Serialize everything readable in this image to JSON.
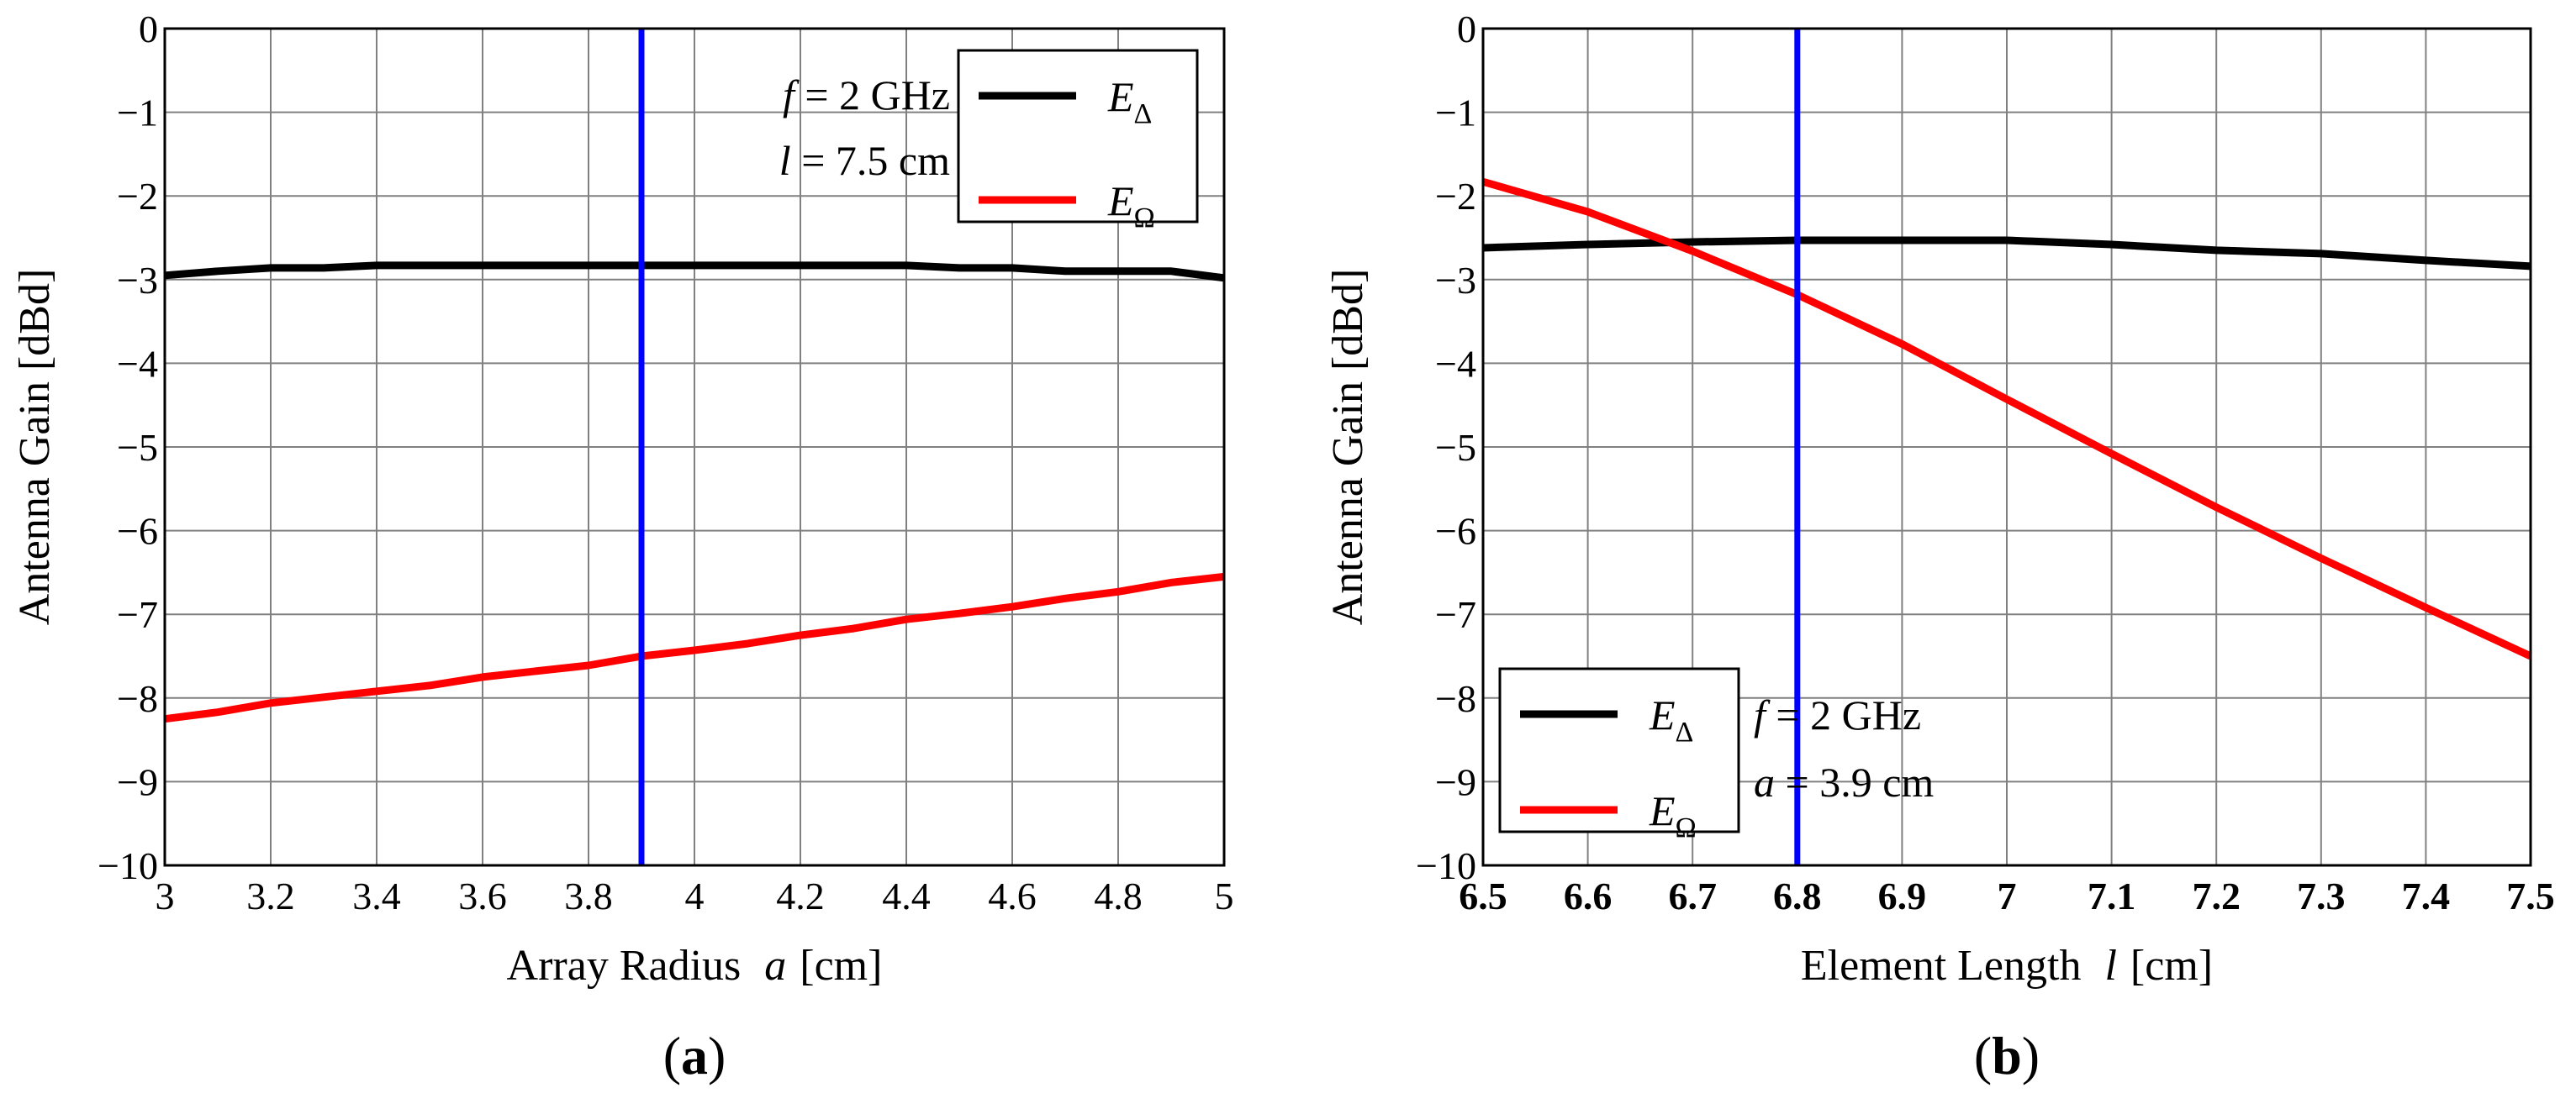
{
  "colors": {
    "E_delta": "#000000",
    "E_omega": "#ff0000",
    "marker": "#0000ff",
    "grid": "#808080"
  },
  "chart_data": [
    {
      "panel_label": "a",
      "type": "line",
      "xlabel_main": "Array Radius",
      "xlabel_var": "a",
      "xlabel_unit": "[cm]",
      "ylabel": "Antenna Gain [dBd]",
      "xlim": [
        3,
        5
      ],
      "ylim": [
        -10,
        0
      ],
      "xticks": [
        3,
        3.2,
        3.4,
        3.6,
        3.8,
        4,
        4.2,
        4.4,
        4.6,
        4.8,
        5
      ],
      "xtick_labels": [
        "3",
        "3.2",
        "3.4",
        "3.6",
        "3.8",
        "4",
        "4.2",
        "4.4",
        "4.6",
        "4.8",
        "5"
      ],
      "yticks": [
        0,
        -1,
        -2,
        -3,
        -4,
        -5,
        -6,
        -7,
        -8,
        -9,
        -10
      ],
      "ytick_labels": [
        "0",
        "−1",
        "−2",
        "−3",
        "−4",
        "−5",
        "−6",
        "−7",
        "−8",
        "−9",
        "−10"
      ],
      "grid": true,
      "legend_position": "top-right",
      "marker_line_x": 3.9,
      "annotations": [
        {
          "var": "f",
          "text": " = 2 GHz"
        },
        {
          "var": "l",
          "text": " = 7.5 cm"
        }
      ],
      "series": [
        {
          "name": "E",
          "name_sub": "Δ",
          "color_key": "E_delta",
          "x": [
            3,
            3.1,
            3.2,
            3.3,
            3.4,
            3.5,
            3.6,
            3.7,
            3.8,
            3.9,
            4,
            4.1,
            4.2,
            4.3,
            4.4,
            4.5,
            4.6,
            4.7,
            4.8,
            4.9,
            5
          ],
          "y": [
            -2.95,
            -2.9,
            -2.86,
            -2.86,
            -2.83,
            -2.83,
            -2.83,
            -2.83,
            -2.83,
            -2.83,
            -2.83,
            -2.83,
            -2.83,
            -2.83,
            -2.83,
            -2.86,
            -2.86,
            -2.9,
            -2.9,
            -2.9,
            -2.98
          ]
        },
        {
          "name": "E",
          "name_sub": "Ω",
          "color_key": "E_omega",
          "x": [
            3,
            3.1,
            3.2,
            3.3,
            3.4,
            3.5,
            3.6,
            3.7,
            3.8,
            3.9,
            4,
            4.1,
            4.2,
            4.3,
            4.4,
            4.5,
            4.6,
            4.7,
            4.8,
            4.9,
            5
          ],
          "y": [
            -8.25,
            -8.17,
            -8.06,
            -7.99,
            -7.92,
            -7.85,
            -7.75,
            -7.68,
            -7.61,
            -7.5,
            -7.43,
            -7.35,
            -7.25,
            -7.17,
            -7.06,
            -6.99,
            -6.91,
            -6.81,
            -6.73,
            -6.62,
            -6.55
          ]
        }
      ]
    },
    {
      "panel_label": "b",
      "type": "line",
      "xlabel_main": "Element Length",
      "xlabel_var": "l",
      "xlabel_unit": "[cm]",
      "ylabel": "Antenna Gain [dBd]",
      "xlim": [
        6.5,
        7.5
      ],
      "ylim": [
        -10,
        0
      ],
      "xticks": [
        6.5,
        6.6,
        6.7,
        6.8,
        6.9,
        7,
        7.1,
        7.2,
        7.3,
        7.4,
        7.5
      ],
      "xtick_labels": [
        "6.5",
        "6.6",
        "6.7",
        "6.8",
        "6.9",
        "7",
        "7.1",
        "7.2",
        "7.3",
        "7.4",
        "7.5"
      ],
      "yticks": [
        0,
        -1,
        -2,
        -3,
        -4,
        -5,
        -6,
        -7,
        -8,
        -9,
        -10
      ],
      "ytick_labels": [
        "0",
        "−1",
        "−2",
        "−3",
        "−4",
        "−5",
        "−6",
        "−7",
        "−8",
        "−9",
        "−10"
      ],
      "grid": true,
      "legend_position": "bottom-left",
      "marker_line_x": 6.8,
      "annotations": [
        {
          "var": "f",
          "text": " = 2 GHz"
        },
        {
          "var": "a",
          "text": " = 3.9 cm"
        }
      ],
      "series": [
        {
          "name": "E",
          "name_sub": "Δ",
          "color_key": "E_delta",
          "x": [
            6.5,
            6.6,
            6.7,
            6.8,
            6.9,
            7,
            7.1,
            7.2,
            7.3,
            7.4,
            7.5
          ],
          "y": [
            -2.62,
            -2.58,
            -2.55,
            -2.53,
            -2.53,
            -2.53,
            -2.58,
            -2.65,
            -2.69,
            -2.77,
            -2.84
          ]
        },
        {
          "name": "E",
          "name_sub": "Ω",
          "color_key": "E_omega",
          "x": [
            6.5,
            6.6,
            6.7,
            6.8,
            6.9,
            7,
            7.1,
            7.2,
            7.3,
            7.4,
            7.5
          ],
          "y": [
            -1.83,
            -2.19,
            -2.66,
            -3.18,
            -3.77,
            -4.43,
            -5.08,
            -5.72,
            -6.33,
            -6.92,
            -7.5
          ]
        }
      ]
    }
  ]
}
